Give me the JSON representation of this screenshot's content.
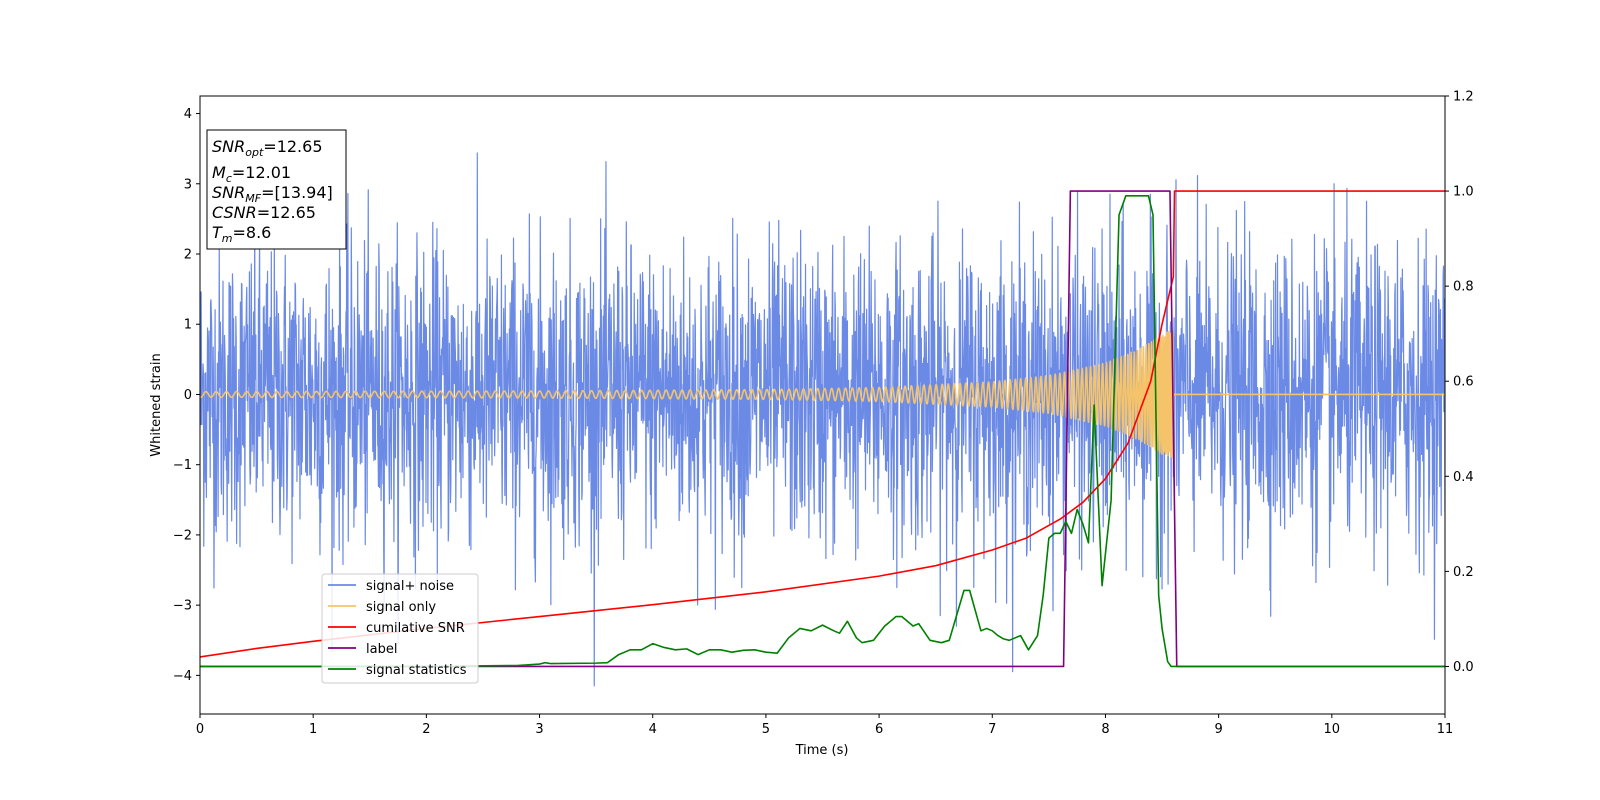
{
  "chart_data": {
    "type": "line",
    "xlabel": "Time (s)",
    "ylabel": "Whitened strain",
    "xlim": [
      0,
      11
    ],
    "ylim": [
      -4.55,
      4.25
    ],
    "y2lim": [
      -0.1,
      1.2
    ],
    "x_ticks": [
      "0",
      "1",
      "2",
      "3",
      "4",
      "5",
      "6",
      "7",
      "8",
      "9",
      "10",
      "11"
    ],
    "y_ticks": [
      "−4",
      "−3",
      "−2",
      "−1",
      "0",
      "1",
      "2",
      "3",
      "4"
    ],
    "y2_ticks": [
      "0.0",
      "0.2",
      "0.4",
      "0.6",
      "0.8",
      "1.0",
      "1.2"
    ],
    "grid": false,
    "legend_position": "lower-left",
    "info_box": {
      "lines": [
        {
          "main": "SNR",
          "sub": "opt",
          "value": "=12.65"
        },
        {
          "main": "M",
          "sub": "c",
          "value": "=12.01"
        },
        {
          "main": "SNR",
          "sub": "MF",
          "value": "=[13.94]"
        },
        {
          "main": "CSNR",
          "sub": "",
          "value": "=12.65"
        },
        {
          "main": "T",
          "sub": "m",
          "value": "=8.6"
        }
      ]
    },
    "series": [
      {
        "name": "signal+ noise",
        "axis": "left",
        "color": "#6b8ae5",
        "kind": "noise",
        "noise_sigma": 1.0,
        "y_range": [
          -4.15,
          3.85
        ]
      },
      {
        "name": "signal only",
        "axis": "left",
        "color": "#f5c46a",
        "kind": "chirp",
        "amplitude_envelope": {
          "x": [
            0,
            3,
            5,
            6,
            7,
            7.5,
            8,
            8.3,
            8.5,
            8.6
          ],
          "y": [
            0.04,
            0.05,
            0.07,
            0.1,
            0.18,
            0.27,
            0.45,
            0.65,
            0.85,
            0.95
          ]
        },
        "merger_time": 8.6,
        "after_merger_value": 0
      },
      {
        "name": "cumilative SNR",
        "axis": "right",
        "color": "#ff0000",
        "x": [
          0,
          0.5,
          1,
          2,
          3,
          4,
          5,
          6,
          6.5,
          7,
          7.3,
          7.6,
          7.8,
          8.0,
          8.2,
          8.4,
          8.5,
          8.6,
          8.61,
          11
        ],
        "y": [
          0.02,
          0.038,
          0.053,
          0.08,
          0.105,
          0.13,
          0.157,
          0.19,
          0.212,
          0.245,
          0.27,
          0.31,
          0.345,
          0.395,
          0.47,
          0.6,
          0.72,
          0.82,
          1.0,
          1.0
        ]
      },
      {
        "name": "label",
        "axis": "right",
        "color": "#800080",
        "x": [
          0,
          7.63,
          7.69,
          8.57,
          8.63,
          11
        ],
        "y": [
          0,
          0,
          1,
          1,
          0,
          0
        ]
      },
      {
        "name": "signal statistics",
        "axis": "right",
        "color": "#008000",
        "x": [
          0,
          1,
          2,
          2.8,
          3.0,
          3.05,
          3.1,
          3.5,
          3.6,
          3.7,
          3.8,
          3.9,
          4.0,
          4.1,
          4.2,
          4.3,
          4.4,
          4.5,
          4.6,
          4.7,
          4.8,
          4.9,
          5.0,
          5.1,
          5.2,
          5.3,
          5.4,
          5.5,
          5.6,
          5.65,
          5.72,
          5.8,
          5.85,
          5.95,
          6.05,
          6.15,
          6.2,
          6.3,
          6.35,
          6.45,
          6.55,
          6.62,
          6.75,
          6.8,
          6.9,
          6.95,
          7.0,
          7.05,
          7.1,
          7.15,
          7.25,
          7.32,
          7.4,
          7.45,
          7.5,
          7.55,
          7.6,
          7.65,
          7.7,
          7.75,
          7.8,
          7.85,
          7.9,
          7.97,
          8.05,
          8.12,
          8.18,
          8.25,
          8.32,
          8.38,
          8.42,
          8.47,
          8.5,
          8.55,
          8.58,
          8.63,
          9,
          10,
          11
        ],
        "y": [
          0,
          0,
          0,
          0.002,
          0.005,
          0.008,
          0.006,
          0.007,
          0.008,
          0.025,
          0.035,
          0.035,
          0.048,
          0.04,
          0.035,
          0.037,
          0.025,
          0.035,
          0.035,
          0.03,
          0.034,
          0.035,
          0.03,
          0.028,
          0.06,
          0.08,
          0.075,
          0.087,
          0.075,
          0.07,
          0.095,
          0.06,
          0.05,
          0.055,
          0.085,
          0.105,
          0.105,
          0.085,
          0.09,
          0.055,
          0.05,
          0.055,
          0.16,
          0.16,
          0.075,
          0.08,
          0.075,
          0.065,
          0.058,
          0.055,
          0.065,
          0.035,
          0.065,
          0.15,
          0.27,
          0.28,
          0.28,
          0.305,
          0.28,
          0.33,
          0.3,
          0.26,
          0.55,
          0.17,
          0.35,
          0.95,
          0.99,
          0.99,
          0.99,
          0.99,
          0.95,
          0.15,
          0.08,
          0.01,
          0.0,
          0.0,
          0.0,
          0.0,
          0.0
        ]
      }
    ]
  }
}
